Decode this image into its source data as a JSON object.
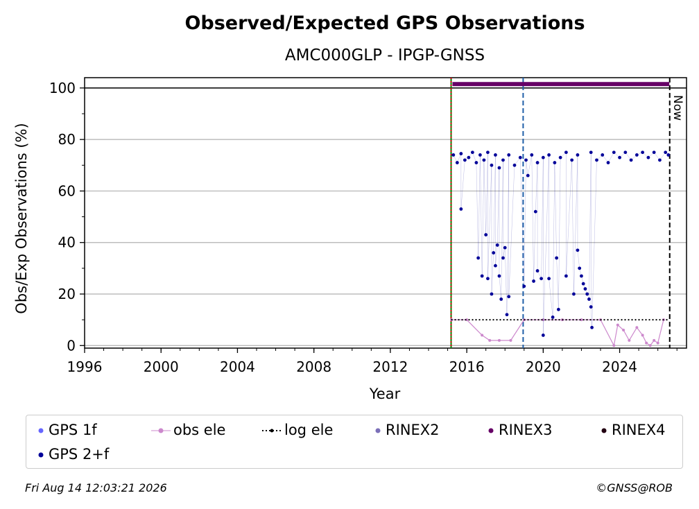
{
  "chart_data": {
    "type": "scatter",
    "title": "Observed/Expected GPS Observations",
    "subtitle": "AMC000GLP - IPGP-GNSS",
    "xlabel": "Year",
    "ylabel": "Obs/Exp Observations (%)",
    "xlim": [
      1996,
      2027.5
    ],
    "ylim": [
      -1,
      104
    ],
    "xticks": [
      1996,
      2000,
      2004,
      2008,
      2012,
      2016,
      2020,
      2024
    ],
    "yticks": [
      0,
      20,
      40,
      60,
      80,
      100
    ],
    "grid": "horizontal",
    "now_label": "Now",
    "vlines": [
      {
        "x": 2015.18,
        "color": "#008000",
        "style": "solid"
      },
      {
        "x": 2015.18,
        "color": "#cc0000",
        "style": "dotted"
      },
      {
        "x": 2018.95,
        "color": "#1f5fa8",
        "style": "dashed"
      },
      {
        "x": 2026.62,
        "color": "#000000",
        "style": "dashed"
      }
    ],
    "hline_100": 100,
    "rinex3_bar": {
      "x": [
        2015.25,
        2026.6
      ],
      "y": 101.5,
      "color": "#660066"
    },
    "log_ele": {
      "x": [
        2015.18,
        2026.6
      ],
      "y": 10
    },
    "gps2f_main": [
      [
        2015.3,
        74
      ],
      [
        2015.5,
        71
      ],
      [
        2015.7,
        74.5
      ],
      [
        2015.9,
        72
      ],
      [
        2016.1,
        73
      ],
      [
        2016.3,
        75
      ],
      [
        2016.5,
        71
      ],
      [
        2016.7,
        74
      ],
      [
        2016.9,
        72
      ],
      [
        2017.1,
        75
      ],
      [
        2017.3,
        70
      ],
      [
        2017.5,
        74
      ],
      [
        2017.7,
        69
      ],
      [
        2017.9,
        72
      ],
      [
        2018.2,
        74
      ],
      [
        2018.5,
        70
      ],
      [
        2018.8,
        73
      ],
      [
        2019.1,
        72
      ],
      [
        2019.4,
        74
      ],
      [
        2019.7,
        71
      ],
      [
        2020.0,
        73
      ],
      [
        2020.3,
        74
      ],
      [
        2020.6,
        71
      ],
      [
        2020.9,
        73
      ],
      [
        2021.2,
        75
      ],
      [
        2021.5,
        72
      ],
      [
        2021.8,
        74
      ],
      [
        2022.5,
        75
      ],
      [
        2022.8,
        72
      ],
      [
        2023.1,
        74
      ],
      [
        2023.4,
        71
      ],
      [
        2023.7,
        75
      ],
      [
        2024.0,
        73
      ],
      [
        2024.3,
        75
      ],
      [
        2024.6,
        72
      ],
      [
        2024.9,
        74
      ],
      [
        2025.2,
        75
      ],
      [
        2025.5,
        73
      ],
      [
        2025.8,
        75
      ],
      [
        2026.1,
        72
      ],
      [
        2026.4,
        75
      ],
      [
        2026.55,
        74
      ]
    ],
    "gps2f_low": [
      [
        2015.7,
        53
      ],
      [
        2016.6,
        34
      ],
      [
        2016.8,
        27
      ],
      [
        2017.0,
        43
      ],
      [
        2017.1,
        26
      ],
      [
        2017.3,
        20
      ],
      [
        2017.4,
        36
      ],
      [
        2017.5,
        31
      ],
      [
        2017.6,
        39
      ],
      [
        2017.7,
        27
      ],
      [
        2017.8,
        18
      ],
      [
        2017.9,
        34
      ],
      [
        2018.0,
        38
      ],
      [
        2018.1,
        12
      ],
      [
        2018.2,
        19
      ],
      [
        2019.0,
        23
      ],
      [
        2019.2,
        66
      ],
      [
        2019.5,
        25
      ],
      [
        2019.6,
        52
      ],
      [
        2019.7,
        29
      ],
      [
        2019.9,
        26
      ],
      [
        2020.0,
        4
      ],
      [
        2020.3,
        26
      ],
      [
        2020.5,
        11
      ],
      [
        2020.7,
        34
      ],
      [
        2020.8,
        14
      ],
      [
        2021.2,
        27
      ],
      [
        2021.6,
        20
      ],
      [
        2021.8,
        37
      ],
      [
        2021.9,
        30
      ],
      [
        2022.0,
        27
      ],
      [
        2022.1,
        24
      ],
      [
        2022.2,
        22
      ],
      [
        2022.3,
        20
      ],
      [
        2022.4,
        18
      ],
      [
        2022.5,
        15
      ],
      [
        2022.55,
        7
      ]
    ],
    "obs_ele": [
      [
        2015.2,
        10
      ],
      [
        2016.0,
        10
      ],
      [
        2016.8,
        4
      ],
      [
        2017.2,
        2
      ],
      [
        2017.7,
        2
      ],
      [
        2018.3,
        2
      ],
      [
        2019.0,
        10
      ],
      [
        2020.0,
        10
      ],
      [
        2021.0,
        10
      ],
      [
        2022.0,
        10
      ],
      [
        2023.0,
        10
      ],
      [
        2023.7,
        0
      ],
      [
        2023.9,
        8
      ],
      [
        2024.2,
        6
      ],
      [
        2024.5,
        2
      ],
      [
        2024.9,
        7
      ],
      [
        2025.2,
        4
      ],
      [
        2025.4,
        1
      ],
      [
        2025.6,
        0
      ],
      [
        2025.8,
        2
      ],
      [
        2026.0,
        1
      ],
      [
        2026.3,
        10
      ]
    ],
    "legend": [
      {
        "label": "GPS 1f",
        "color": "#6666ff",
        "kind": "dot"
      },
      {
        "label": "obs ele",
        "color": "#cc88cc",
        "kind": "line-dot"
      },
      {
        "label": "log ele",
        "color": "#000000",
        "kind": "dotted"
      },
      {
        "label": "RINEX2",
        "color": "#7b6fb8",
        "kind": "dot"
      },
      {
        "label": "RINEX3",
        "color": "#660066",
        "kind": "dot"
      },
      {
        "label": "RINEX4",
        "color": "#220011",
        "kind": "dot"
      },
      {
        "label": "GPS 2+f",
        "color": "#000099",
        "kind": "dot"
      }
    ]
  },
  "footer": {
    "timestamp": "Fri Aug 14 12:03:21 2026",
    "credit": "©GNSS@ROB"
  }
}
